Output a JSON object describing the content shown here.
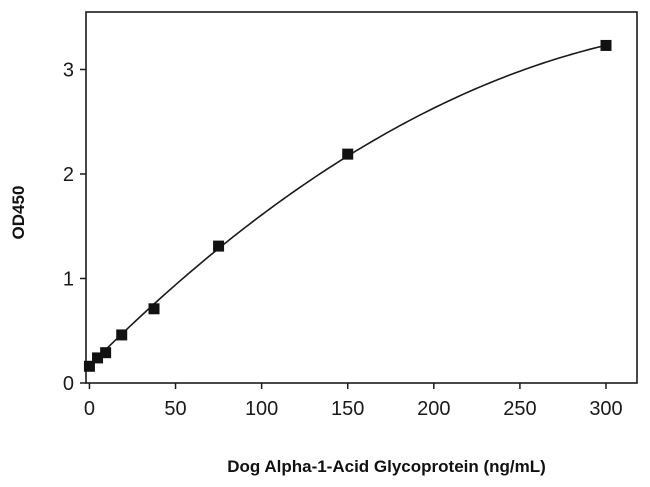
{
  "chart_data": {
    "type": "scatter",
    "title": "",
    "xlabel": "Dog Alpha-1-Acid Glycoprotein (ng/mL)",
    "ylabel": "OD450",
    "xlim": [
      -2,
      318
    ],
    "ylim": [
      0,
      3.55
    ],
    "xticks": [
      0,
      50,
      100,
      150,
      200,
      250,
      300
    ],
    "yticks": [
      0,
      1,
      2,
      3
    ],
    "grid": false,
    "legend": "none",
    "marker": "square",
    "series": [
      {
        "points": [
          {
            "x": 0,
            "y": 0.16
          },
          {
            "x": 4.7,
            "y": 0.24
          },
          {
            "x": 9.4,
            "y": 0.29
          },
          {
            "x": 18.75,
            "y": 0.46
          },
          {
            "x": 37.5,
            "y": 0.71
          },
          {
            "x": 75,
            "y": 1.31
          },
          {
            "x": 150,
            "y": 2.19
          },
          {
            "x": 300,
            "y": 3.23
          }
        ],
        "fit_curve": {
          "type": "quadratic",
          "coefficients": [
            0.1653,
            0.016533,
            -2.104e-05
          ]
        }
      }
    ],
    "colors": {
      "axis": "#1a1a1a",
      "marker": "#111111",
      "curve": "#1a1a1a"
    }
  }
}
